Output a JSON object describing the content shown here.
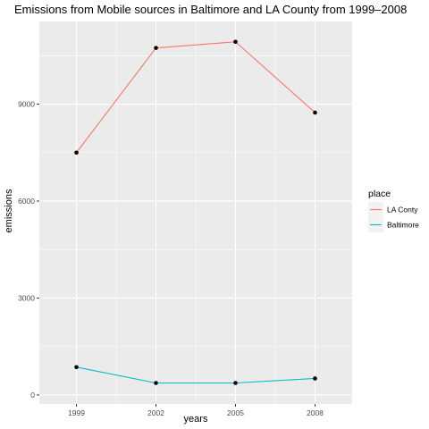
{
  "chart_data": {
    "type": "line",
    "title": "Emissions from Mobile  sources in Baltimore and LA County from 1999–2008",
    "xlabel": "years",
    "ylabel": "emissions",
    "x": [
      1999,
      2002,
      2005,
      2008
    ],
    "x_tick_labels": [
      "1999",
      "2002",
      "2005",
      "2008"
    ],
    "y_ticks": [
      0,
      3000,
      6000,
      9000
    ],
    "y_tick_labels": [
      "0",
      "3000",
      "6000",
      "9000"
    ],
    "xlim": [
      1997.6,
      2009.4
    ],
    "ylim": [
      -280,
      11560
    ],
    "grid": true,
    "legend": {
      "title": "place",
      "position": "right"
    },
    "series": [
      {
        "name": "LA Conty",
        "color": "#F8766D",
        "values": [
          7500,
          10740,
          10930,
          8740
        ]
      },
      {
        "name": "Baltimore",
        "color": "#00BFC4",
        "values": [
          860,
          370,
          370,
          510
        ]
      }
    ],
    "point_color": "#000000",
    "panel_color": "#EBEBEB",
    "grid_color": "#FFFFFF"
  }
}
